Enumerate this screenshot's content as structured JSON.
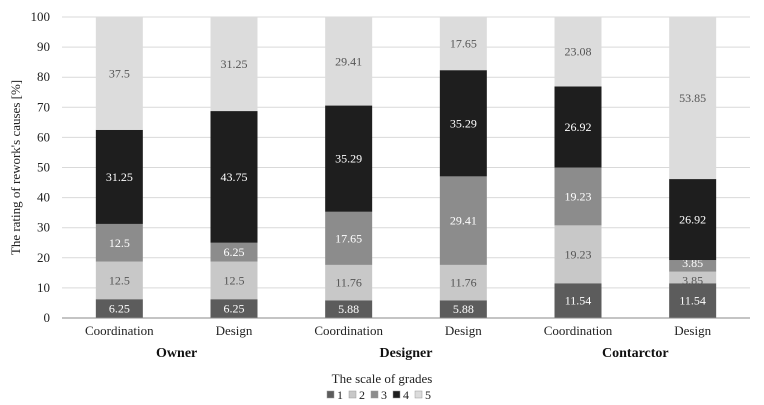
{
  "chart_data": {
    "type": "bar",
    "stacked": true,
    "title": "",
    "ylabel": "The rating of rework's causes  [%]",
    "ylim": [
      0,
      100
    ],
    "yticks": [
      0,
      10,
      20,
      30,
      40,
      50,
      60,
      70,
      80,
      90,
      100
    ],
    "categories": [
      "Coordination",
      "Design",
      "Coordination",
      "Design",
      "Coordination",
      "Design"
    ],
    "groups": [
      {
        "label": "Owner",
        "categories": [
          0,
          1
        ]
      },
      {
        "label": "Designer",
        "categories": [
          2,
          3
        ]
      },
      {
        "label": "Contarctor",
        "categories": [
          4,
          5
        ]
      }
    ],
    "legend_title": "The scale of grades",
    "legend_position": "bottom",
    "series": [
      {
        "name": "1",
        "color": "#5c5c5c",
        "label_color": "#ffffff",
        "values": [
          6.25,
          6.25,
          5.88,
          5.88,
          11.54,
          11.54
        ]
      },
      {
        "name": "2",
        "color": "#c8c8c8",
        "label_color": "#555555",
        "values": [
          12.5,
          12.5,
          11.76,
          11.76,
          19.23,
          3.85
        ]
      },
      {
        "name": "3",
        "color": "#8c8c8c",
        "label_color": "#ffffff",
        "values": [
          12.5,
          6.25,
          17.65,
          29.41,
          19.23,
          3.85
        ]
      },
      {
        "name": "4",
        "color": "#1e1e1e",
        "label_color": "#ffffff",
        "values": [
          31.25,
          43.75,
          35.29,
          35.29,
          26.92,
          26.92
        ]
      },
      {
        "name": "5",
        "color": "#dcdcdc",
        "label_color": "#555555",
        "values": [
          37.5,
          31.25,
          29.41,
          17.65,
          23.08,
          53.85
        ]
      }
    ]
  }
}
